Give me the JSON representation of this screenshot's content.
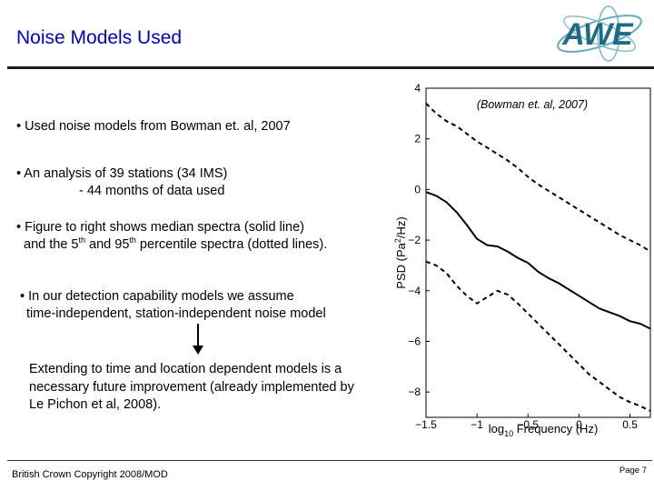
{
  "header": {
    "title": "Noise Models Used"
  },
  "logo": {
    "text": "AWE",
    "color": "#1d6b86"
  },
  "bullets": {
    "b1": "• Used noise models from Bowman et. al, 2007",
    "b2_line1": "• An analysis of 39 stations (34 IMS)",
    "b2_line2": "- 44 months of data used",
    "b3_pre": "• Figure to right shows median spectra (solid line)",
    "b3_l2_a": "and the 5",
    "b3_sup_a": "th",
    "b3_l2_b": " and 95",
    "b3_sup_b": "th",
    "b3_l2_c": " percentile spectra (dotted lines).",
    "b4_line1": "• In our detection capability models we assume",
    "b4_line2": "time-independent, station-independent noise model"
  },
  "extension": {
    "line1": "Extending to time and location dependent models is a",
    "line2": "necessary future improvement (already implemented by",
    "line3": "Le Pichon et al, 2008)."
  },
  "footer": {
    "copyright": "British Crown Copyright 2008/MOD",
    "page": "Page 7"
  },
  "chart_data": {
    "type": "line",
    "title": "(Bowman et. al, 2007)",
    "ylabel_main": "PSD (Pa",
    "ylabel_sup": "2",
    "ylabel_tail": "/Hz)",
    "xlabel_log": "log",
    "xlabel_sub": "10",
    "xlabel_tail": " Frequency (Hz)",
    "xlim": [
      -1.5,
      0.7
    ],
    "ylim": [
      -9,
      4
    ],
    "xticks": [
      "-1.5",
      "-1",
      "-0.5",
      "0",
      "0.5"
    ],
    "xtick_values": [
      -1.5,
      -1,
      -0.5,
      0,
      0.5
    ],
    "yticks": [
      "4",
      "2",
      "0",
      "-2",
      "-4",
      "-6",
      "-8"
    ],
    "ytick_values": [
      4,
      2,
      0,
      -2,
      -4,
      -6,
      -8
    ],
    "series": [
      {
        "style": "dashed",
        "x": [
          -1.5,
          -1.4,
          -1.3,
          -1.2,
          -1.1,
          -1.0,
          -0.9,
          -0.8,
          -0.7,
          -0.6,
          -0.5,
          -0.4,
          -0.3,
          -0.2,
          -0.1,
          0.0,
          0.1,
          0.2,
          0.3,
          0.4,
          0.5,
          0.6,
          0.7
        ],
        "y": [
          3.4,
          3.0,
          2.7,
          2.5,
          2.2,
          1.9,
          1.65,
          1.4,
          1.15,
          0.85,
          0.5,
          0.2,
          -0.05,
          -0.3,
          -0.55,
          -0.8,
          -1.05,
          -1.3,
          -1.55,
          -1.8,
          -2.0,
          -2.2,
          -2.45
        ]
      },
      {
        "style": "solid",
        "x": [
          -1.5,
          -1.4,
          -1.3,
          -1.2,
          -1.1,
          -1.0,
          -0.9,
          -0.8,
          -0.7,
          -0.6,
          -0.5,
          -0.4,
          -0.3,
          -0.2,
          -0.1,
          0.0,
          0.1,
          0.2,
          0.3,
          0.4,
          0.5,
          0.6,
          0.7
        ],
        "y": [
          -0.1,
          -0.25,
          -0.5,
          -0.9,
          -1.4,
          -1.95,
          -2.2,
          -2.25,
          -2.45,
          -2.7,
          -2.9,
          -3.25,
          -3.5,
          -3.7,
          -3.95,
          -4.2,
          -4.45,
          -4.7,
          -4.85,
          -5.0,
          -5.2,
          -5.3,
          -5.5
        ]
      },
      {
        "style": "dashed",
        "x": [
          -1.5,
          -1.4,
          -1.3,
          -1.2,
          -1.1,
          -1.0,
          -0.9,
          -0.8,
          -0.7,
          -0.6,
          -0.5,
          -0.4,
          -0.3,
          -0.2,
          -0.1,
          0.0,
          0.1,
          0.2,
          0.3,
          0.4,
          0.5,
          0.6,
          0.7
        ],
        "y": [
          -2.85,
          -3.0,
          -3.3,
          -3.8,
          -4.2,
          -4.5,
          -4.25,
          -4.0,
          -4.15,
          -4.5,
          -4.9,
          -5.3,
          -5.7,
          -6.1,
          -6.5,
          -6.9,
          -7.3,
          -7.6,
          -7.9,
          -8.2,
          -8.4,
          -8.55,
          -8.75
        ]
      }
    ]
  }
}
